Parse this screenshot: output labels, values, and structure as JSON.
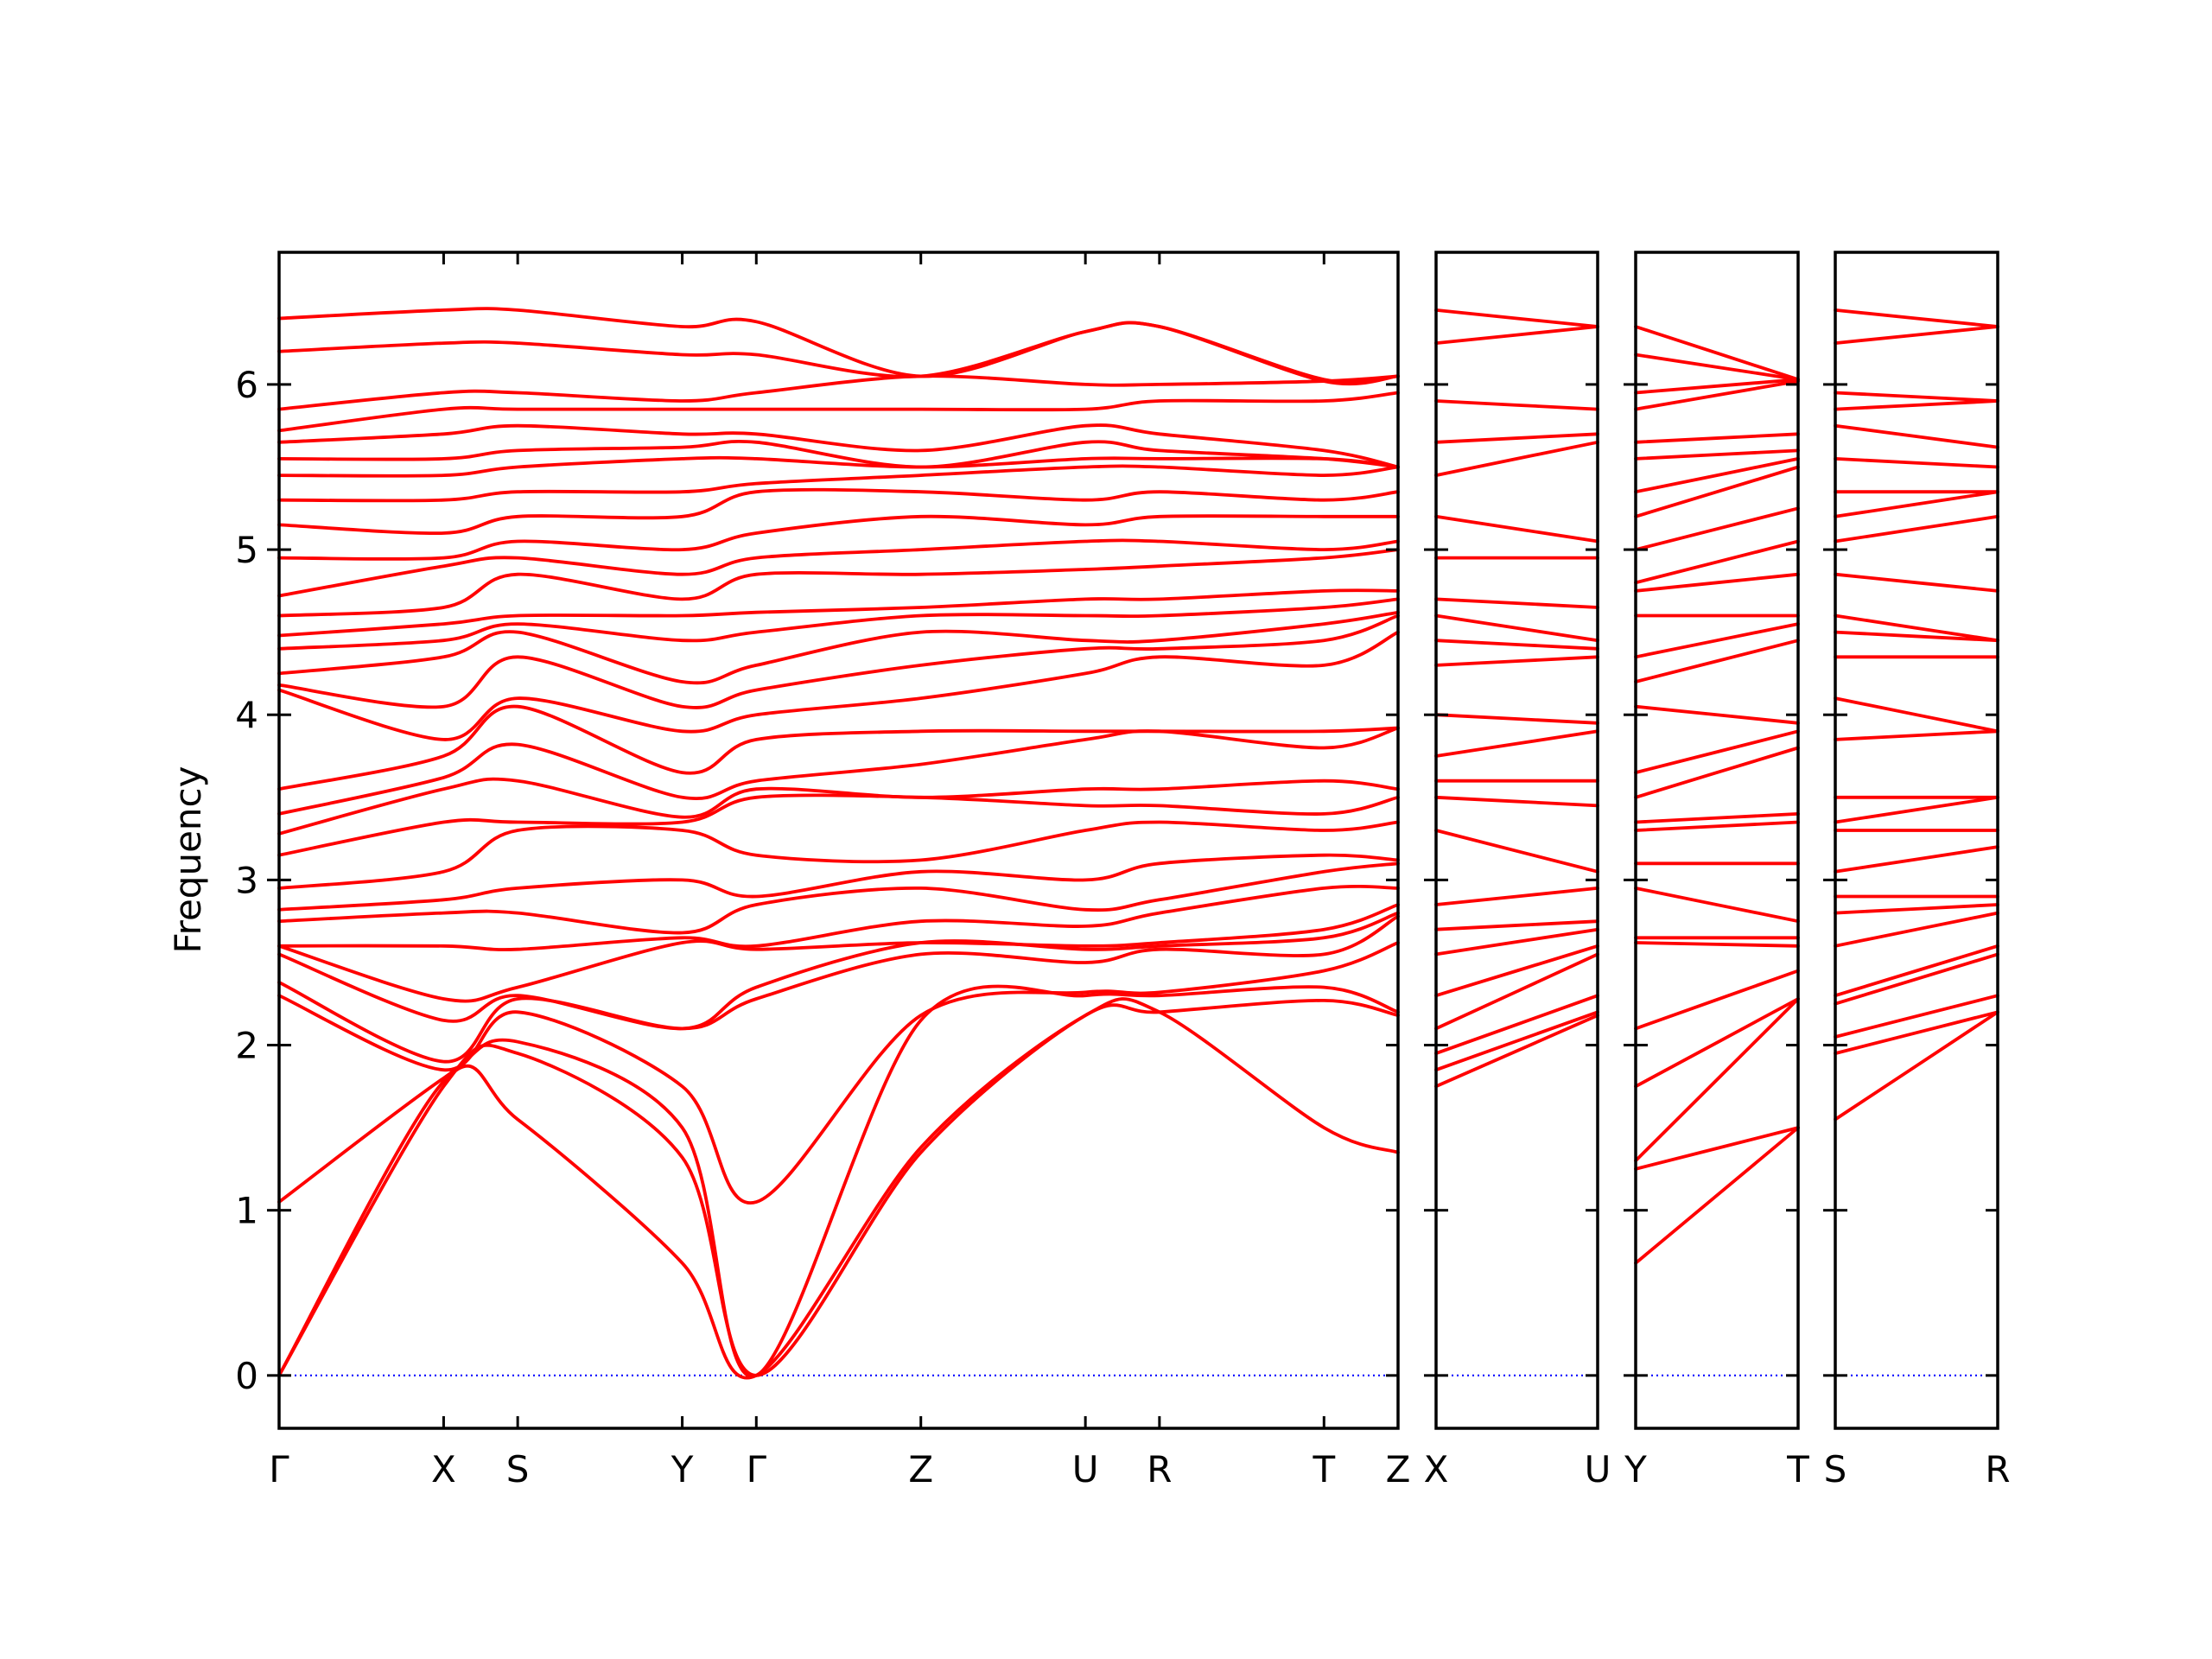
{
  "chart_data": {
    "type": "line",
    "title": "",
    "ylabel": "Frequency",
    "ylim": [
      -0.32,
      6.8
    ],
    "yticks": [
      0,
      1,
      2,
      3,
      4,
      5,
      6
    ],
    "line_color": "#ff0000",
    "zero_line_color": "#0000ff",
    "grid": false,
    "panels": [
      {
        "path_labels": [
          "Γ",
          "X",
          "S",
          "Y",
          "Γ",
          "Z",
          "U",
          "R",
          "T",
          "Z"
        ],
        "x": [
          0,
          1.0,
          1.45,
          2.45,
          2.9,
          3.9,
          4.9,
          5.35,
          6.35,
          6.8
        ],
        "bands": [
          [
            0,
            1.78,
            1.55,
            0.68,
            0,
            1.38,
            2.18,
            2.2,
            1.5,
            1.35
          ],
          [
            0,
            1.75,
            1.95,
            1.32,
            0,
            1.35,
            2.18,
            2.2,
            2.27,
            2.18
          ],
          [
            1.05,
            1.8,
            2.02,
            1.5,
            0,
            2.15,
            2.3,
            2.3,
            2.35,
            2.2
          ],
          [
            2.3,
            1.85,
            2.2,
            1.75,
            1.05,
            2.18,
            2.32,
            2.32,
            2.45,
            2.62
          ],
          [
            2.38,
            1.9,
            2.28,
            2.1,
            2.28,
            2.55,
            2.5,
            2.58,
            2.55,
            2.78
          ],
          [
            2.55,
            2.15,
            2.3,
            2.1,
            2.35,
            2.62,
            2.58,
            2.6,
            2.65,
            2.8
          ],
          [
            2.6,
            2.28,
            2.35,
            2.62,
            2.58,
            2.62,
            2.6,
            2.62,
            2.7,
            2.85
          ],
          [
            2.6,
            2.6,
            2.58,
            2.65,
            2.6,
            2.75,
            2.72,
            2.8,
            2.95,
            2.95
          ],
          [
            2.75,
            2.8,
            2.8,
            2.68,
            2.85,
            2.95,
            2.82,
            2.88,
            3.05,
            3.1
          ],
          [
            2.82,
            2.88,
            2.95,
            3.0,
            2.9,
            3.05,
            3.0,
            3.1,
            3.15,
            3.12
          ],
          [
            2.95,
            3.05,
            3.3,
            3.3,
            3.15,
            3.12,
            3.3,
            3.35,
            3.3,
            3.35
          ],
          [
            3.15,
            3.35,
            3.35,
            3.35,
            3.5,
            3.5,
            3.45,
            3.45,
            3.4,
            3.5
          ],
          [
            3.28,
            3.55,
            3.6,
            3.38,
            3.55,
            3.5,
            3.55,
            3.55,
            3.6,
            3.55
          ],
          [
            3.4,
            3.62,
            3.82,
            3.5,
            3.6,
            3.7,
            3.85,
            3.9,
            3.8,
            3.92
          ],
          [
            3.55,
            3.75,
            4.05,
            3.65,
            3.85,
            3.9,
            3.9,
            3.9,
            3.9,
            3.92
          ],
          [
            4.15,
            3.85,
            4.1,
            3.9,
            4.0,
            4.1,
            4.25,
            4.35,
            4.3,
            4.5
          ],
          [
            4.18,
            4.05,
            4.35,
            4.05,
            4.15,
            4.3,
            4.4,
            4.4,
            4.45,
            4.6
          ],
          [
            4.25,
            4.35,
            4.5,
            4.2,
            4.3,
            4.5,
            4.45,
            4.45,
            4.55,
            4.62
          ],
          [
            4.4,
            4.45,
            4.55,
            4.45,
            4.5,
            4.6,
            4.6,
            4.6,
            4.65,
            4.7
          ],
          [
            4.48,
            4.55,
            4.6,
            4.6,
            4.62,
            4.65,
            4.7,
            4.7,
            4.75,
            4.75
          ],
          [
            4.6,
            4.65,
            4.85,
            4.7,
            4.85,
            4.85,
            4.88,
            4.9,
            4.95,
            5.0
          ],
          [
            4.72,
            4.9,
            4.95,
            4.85,
            4.95,
            5.0,
            5.05,
            5.05,
            5.0,
            5.05
          ],
          [
            4.95,
            4.95,
            5.05,
            5.0,
            5.1,
            5.2,
            5.15,
            5.2,
            5.2,
            5.2
          ],
          [
            5.15,
            5.1,
            5.2,
            5.2,
            5.35,
            5.35,
            5.3,
            5.35,
            5.3,
            5.35
          ],
          [
            5.3,
            5.3,
            5.35,
            5.35,
            5.4,
            5.45,
            5.5,
            5.5,
            5.45,
            5.5
          ],
          [
            5.45,
            5.45,
            5.5,
            5.55,
            5.55,
            5.5,
            5.55,
            5.55,
            5.55,
            5.5
          ],
          [
            5.55,
            5.55,
            5.6,
            5.62,
            5.65,
            5.5,
            5.65,
            5.6,
            5.55,
            5.5
          ],
          [
            5.65,
            5.7,
            5.75,
            5.7,
            5.7,
            5.6,
            5.75,
            5.7,
            5.6,
            5.5
          ],
          [
            5.72,
            5.85,
            5.85,
            5.85,
            5.85,
            5.85,
            5.85,
            5.9,
            5.9,
            5.95
          ],
          [
            5.85,
            5.95,
            5.95,
            5.9,
            5.95,
            6.05,
            6.0,
            6.0,
            6.02,
            6.05
          ],
          [
            6.2,
            6.25,
            6.25,
            6.18,
            6.18,
            6.05,
            6.32,
            6.35,
            6.02,
            6.05
          ],
          [
            6.4,
            6.45,
            6.45,
            6.35,
            6.38,
            6.05,
            6.32,
            6.35,
            6.03,
            6.05
          ]
        ]
      },
      {
        "path_labels": [
          "X",
          "U"
        ],
        "x": [
          0,
          1
        ],
        "bands": [
          [
            1.75,
            2.18
          ],
          [
            1.85,
            2.2
          ],
          [
            1.95,
            2.3
          ],
          [
            2.1,
            2.55
          ],
          [
            2.3,
            2.6
          ],
          [
            2.55,
            2.7
          ],
          [
            2.7,
            2.75
          ],
          [
            2.85,
            2.95
          ],
          [
            3.3,
            3.05
          ],
          [
            3.5,
            3.45
          ],
          [
            3.6,
            3.6
          ],
          [
            3.75,
            3.9
          ],
          [
            4.0,
            3.95
          ],
          [
            4.3,
            4.35
          ],
          [
            4.45,
            4.4
          ],
          [
            4.6,
            4.45
          ],
          [
            4.7,
            4.65
          ],
          [
            4.95,
            4.95
          ],
          [
            5.2,
            5.05
          ],
          [
            5.45,
            5.65
          ],
          [
            5.65,
            5.7
          ],
          [
            5.9,
            5.85
          ],
          [
            6.25,
            6.35
          ],
          [
            6.45,
            6.35
          ]
        ]
      },
      {
        "path_labels": [
          "Y",
          "T"
        ],
        "x": [
          0,
          1
        ],
        "bands": [
          [
            0.68,
            1.5
          ],
          [
            1.25,
            1.5
          ],
          [
            1.3,
            2.28
          ],
          [
            1.75,
            2.28
          ],
          [
            2.1,
            2.45
          ],
          [
            2.62,
            2.6
          ],
          [
            2.65,
            2.65
          ],
          [
            2.95,
            2.75
          ],
          [
            3.1,
            3.1
          ],
          [
            3.3,
            3.35
          ],
          [
            3.35,
            3.4
          ],
          [
            3.5,
            3.8
          ],
          [
            3.65,
            3.9
          ],
          [
            4.05,
            3.95
          ],
          [
            4.2,
            4.45
          ],
          [
            4.35,
            4.55
          ],
          [
            4.6,
            4.6
          ],
          [
            4.75,
            4.85
          ],
          [
            4.8,
            5.05
          ],
          [
            5.0,
            5.25
          ],
          [
            5.2,
            5.5
          ],
          [
            5.35,
            5.55
          ],
          [
            5.55,
            5.6
          ],
          [
            5.65,
            5.7
          ],
          [
            5.85,
            6.02
          ],
          [
            5.95,
            6.03
          ],
          [
            6.18,
            6.03
          ],
          [
            6.35,
            6.03
          ]
        ]
      },
      {
        "path_labels": [
          "S",
          "R"
        ],
        "x": [
          0,
          1
        ],
        "bands": [
          [
            1.55,
            2.2
          ],
          [
            1.95,
            2.2
          ],
          [
            2.05,
            2.3
          ],
          [
            2.25,
            2.55
          ],
          [
            2.3,
            2.6
          ],
          [
            2.6,
            2.8
          ],
          [
            2.8,
            2.85
          ],
          [
            2.9,
            2.9
          ],
          [
            3.05,
            3.2
          ],
          [
            3.3,
            3.3
          ],
          [
            3.35,
            3.5
          ],
          [
            3.5,
            3.5
          ],
          [
            3.85,
            3.9
          ],
          [
            4.1,
            3.9
          ],
          [
            4.35,
            4.35
          ],
          [
            4.5,
            4.45
          ],
          [
            4.6,
            4.45
          ],
          [
            4.85,
            4.75
          ],
          [
            5.05,
            5.2
          ],
          [
            5.2,
            5.35
          ],
          [
            5.35,
            5.35
          ],
          [
            5.55,
            5.5
          ],
          [
            5.75,
            5.62
          ],
          [
            5.85,
            5.9
          ],
          [
            5.95,
            5.9
          ],
          [
            6.25,
            6.35
          ],
          [
            6.45,
            6.35
          ]
        ]
      }
    ]
  }
}
